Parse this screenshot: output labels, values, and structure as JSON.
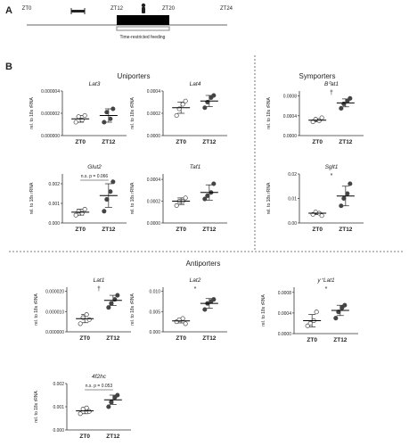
{
  "timeline": {
    "panel_letter": "A",
    "labels": [
      "ZT0",
      "ZT12",
      "ZT20",
      "ZT24"
    ],
    "feeding_label": "Time-restricted feeding"
  },
  "panel_b_letter": "B",
  "sections": {
    "uniporters": "Uniporters",
    "symporters": "Symporters",
    "antiporters": "Antiporters"
  },
  "chart_data": [
    {
      "type": "scatter",
      "title": "Lat3",
      "ylabel": "rel. to 18s rRNA",
      "categories": [
        "ZT0",
        "ZT12"
      ],
      "yticks": [
        "0.000000",
        "0.000002",
        "0.000004"
      ],
      "ylim": [
        0,
        4e-06
      ],
      "series": [
        {
          "category": "ZT0",
          "values": [
            1.2e-06,
            1.7e-06,
            1.4e-06,
            1.8e-06
          ],
          "mean": 1.5e-06,
          "sd": 3e-07
        },
        {
          "category": "ZT12",
          "values": [
            1.2e-06,
            2.1e-06,
            1.5e-06,
            2.4e-06
          ],
          "mean": 1.8e-06,
          "sd": 6e-07
        }
      ],
      "annotation": ""
    },
    {
      "type": "scatter",
      "title": "Lat4",
      "ylabel": "rel. to 18s rRNA",
      "categories": [
        "ZT0",
        "ZT12"
      ],
      "yticks": [
        "0.0000",
        "0.0002",
        "0.0004"
      ],
      "ylim": [
        0,
        0.0004
      ],
      "series": [
        {
          "category": "ZT0",
          "values": [
            0.00018,
            0.00024,
            0.00028,
            0.00031
          ],
          "mean": 0.00025,
          "sd": 5e-05
        },
        {
          "category": "ZT12",
          "values": [
            0.00025,
            0.0003,
            0.00034,
            0.00036
          ],
          "mean": 0.00031,
          "sd": 5e-05
        }
      ],
      "annotation": ""
    },
    {
      "type": "scatter",
      "title": "B⁰at1",
      "ylabel": "rel. to 18s rRNA",
      "categories": [
        "ZT0",
        "ZT12"
      ],
      "yticks": [
        "0.0000",
        "0.0004",
        "0.0008"
      ],
      "ylim": [
        0,
        0.0009
      ],
      "series": [
        {
          "category": "ZT0",
          "values": [
            0.00028,
            0.00033,
            0.0003,
            0.00036
          ],
          "mean": 0.00031,
          "sd": 3e-05
        },
        {
          "category": "ZT12",
          "values": [
            0.00055,
            0.00064,
            0.0007,
            0.00075
          ],
          "mean": 0.00066,
          "sd": 8e-05
        }
      ],
      "annotation": "†"
    },
    {
      "type": "scatter",
      "title": "Glut2",
      "ylabel": "rel. to 18s rRNA",
      "categories": [
        "ZT0",
        "ZT12"
      ],
      "yticks": [
        "0.000",
        "0.001",
        "0.002"
      ],
      "ylim": [
        0,
        0.0025
      ],
      "series": [
        {
          "category": "ZT0",
          "values": [
            0.0004,
            0.0006,
            0.0005,
            0.0007
          ],
          "mean": 0.00055,
          "sd": 0.00015
        },
        {
          "category": "ZT12",
          "values": [
            0.0006,
            0.0012,
            0.0016,
            0.0021
          ],
          "mean": 0.0014,
          "sd": 0.0006
        }
      ],
      "annotation": "n.s. p = 0.066"
    },
    {
      "type": "scatter",
      "title": "Taf1",
      "ylabel": "rel. to 18s rRNA",
      "categories": [
        "ZT0",
        "ZT12"
      ],
      "yticks": [
        "0.0000",
        "0.0002",
        "0.0004"
      ],
      "ylim": [
        0,
        0.00045
      ],
      "series": [
        {
          "category": "ZT0",
          "values": [
            0.00016,
            0.0002,
            0.0002,
            0.00023
          ],
          "mean": 0.0002,
          "sd": 3e-05
        },
        {
          "category": "ZT12",
          "values": [
            0.00022,
            0.00025,
            0.00028,
            0.00036
          ],
          "mean": 0.00028,
          "sd": 7e-05
        }
      ],
      "annotation": ""
    },
    {
      "type": "scatter",
      "title": "Sglt1",
      "ylabel": "rel. to 18s rRNA",
      "categories": [
        "ZT0",
        "ZT12"
      ],
      "yticks": [
        "0.00",
        "0.01",
        "0.02"
      ],
      "ylim": [
        0,
        0.02
      ],
      "series": [
        {
          "category": "ZT0",
          "values": [
            0.0035,
            0.0045,
            0.004,
            0.003
          ],
          "mean": 0.004,
          "sd": 0.0006
        },
        {
          "category": "ZT12",
          "values": [
            0.007,
            0.01,
            0.012,
            0.016
          ],
          "mean": 0.011,
          "sd": 0.004
        }
      ],
      "annotation": "*"
    },
    {
      "type": "scatter",
      "title": "Lat1",
      "ylabel": "rel. to 18s rRNA",
      "categories": [
        "ZT0",
        "ZT12"
      ],
      "yticks": [
        "0.000000",
        "0.000010",
        "0.000020"
      ],
      "ylim": [
        0,
        2.2e-05
      ],
      "series": [
        {
          "category": "ZT0",
          "values": [
            4e-06,
            7e-06,
            8.5e-06,
            6e-06
          ],
          "mean": 6.5e-06,
          "sd": 2e-06
        },
        {
          "category": "ZT12",
          "values": [
            1.2e-05,
            1.4e-05,
            1.6e-05,
            1.8e-05
          ],
          "mean": 1.55e-05,
          "sd": 2.5e-06
        }
      ],
      "annotation": "†"
    },
    {
      "type": "scatter",
      "title": "Lat2",
      "ylabel": "rel. to 18s rRNA",
      "categories": [
        "ZT0",
        "ZT12"
      ],
      "yticks": [
        "0.000",
        "0.005",
        "0.010"
      ],
      "ylim": [
        0,
        0.011
      ],
      "series": [
        {
          "category": "ZT0",
          "values": [
            0.0025,
            0.003,
            0.0033,
            0.002
          ],
          "mean": 0.0027,
          "sd": 0.0005
        },
        {
          "category": "ZT12",
          "values": [
            0.0055,
            0.007,
            0.0075,
            0.008
          ],
          "mean": 0.007,
          "sd": 0.0012
        }
      ],
      "annotation": "*"
    },
    {
      "type": "scatter",
      "title": "y⁺Lat1",
      "ylabel": "rel. to 18s rRNA",
      "categories": [
        "ZT0",
        "ZT12"
      ],
      "yticks": [
        "0.0000",
        "0.0004",
        "0.0008"
      ],
      "ylim": [
        0,
        0.0009
      ],
      "series": [
        {
          "category": "ZT0",
          "values": [
            0.00015,
            0.0002,
            0.00025,
            0.00042
          ],
          "mean": 0.00025,
          "sd": 0.00012
        },
        {
          "category": "ZT12",
          "values": [
            0.0003,
            0.00042,
            0.0005,
            0.00055
          ],
          "mean": 0.00045,
          "sd": 0.0001
        }
      ],
      "annotation": "*"
    },
    {
      "type": "scatter",
      "title": "4f2hc",
      "ylabel": "rel. to 18s rRNA",
      "categories": [
        "ZT0",
        "ZT12"
      ],
      "yticks": [
        "0.000",
        "0.001",
        "0.002"
      ],
      "ylim": [
        0,
        0.002
      ],
      "series": [
        {
          "category": "ZT0",
          "values": [
            0.0007,
            0.0009,
            0.00095,
            0.0008
          ],
          "mean": 0.00082,
          "sd": 0.00012
        },
        {
          "category": "ZT12",
          "values": [
            0.001,
            0.0012,
            0.0014,
            0.0015
          ],
          "mean": 0.0013,
          "sd": 0.0002
        }
      ],
      "annotation": "n.s. p = 0.053"
    }
  ],
  "colors": {
    "zt0_marker": "#ffffff",
    "zt12_marker": "#444444",
    "bar": "#000000",
    "feeding_box": "#999999"
  }
}
